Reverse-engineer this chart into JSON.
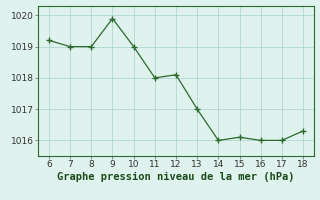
{
  "x": [
    6,
    7,
    8,
    9,
    10,
    11,
    12,
    13,
    14,
    15,
    16,
    17,
    18
  ],
  "y": [
    1019.2,
    1019.0,
    1019.0,
    1019.9,
    1019.0,
    1018.0,
    1018.1,
    1017.0,
    1016.0,
    1016.1,
    1016.0,
    1016.0,
    1016.3
  ],
  "xlim": [
    5.5,
    18.5
  ],
  "ylim": [
    1015.5,
    1020.3
  ],
  "xticks": [
    6,
    7,
    8,
    9,
    10,
    11,
    12,
    13,
    14,
    15,
    16,
    17,
    18
  ],
  "yticks": [
    1016,
    1017,
    1018,
    1019,
    1020
  ],
  "xlabel": "Graphe pression niveau de la mer (hPa)",
  "line_color": "#2d6a2d",
  "marker_color": "#2d6a2d",
  "bg_color": "#dff2ee",
  "grid_color": "#b0d8d0",
  "tick_label_fontsize": 6.5,
  "xlabel_fontsize": 7.5,
  "xlabel_color": "#1a4a1a"
}
